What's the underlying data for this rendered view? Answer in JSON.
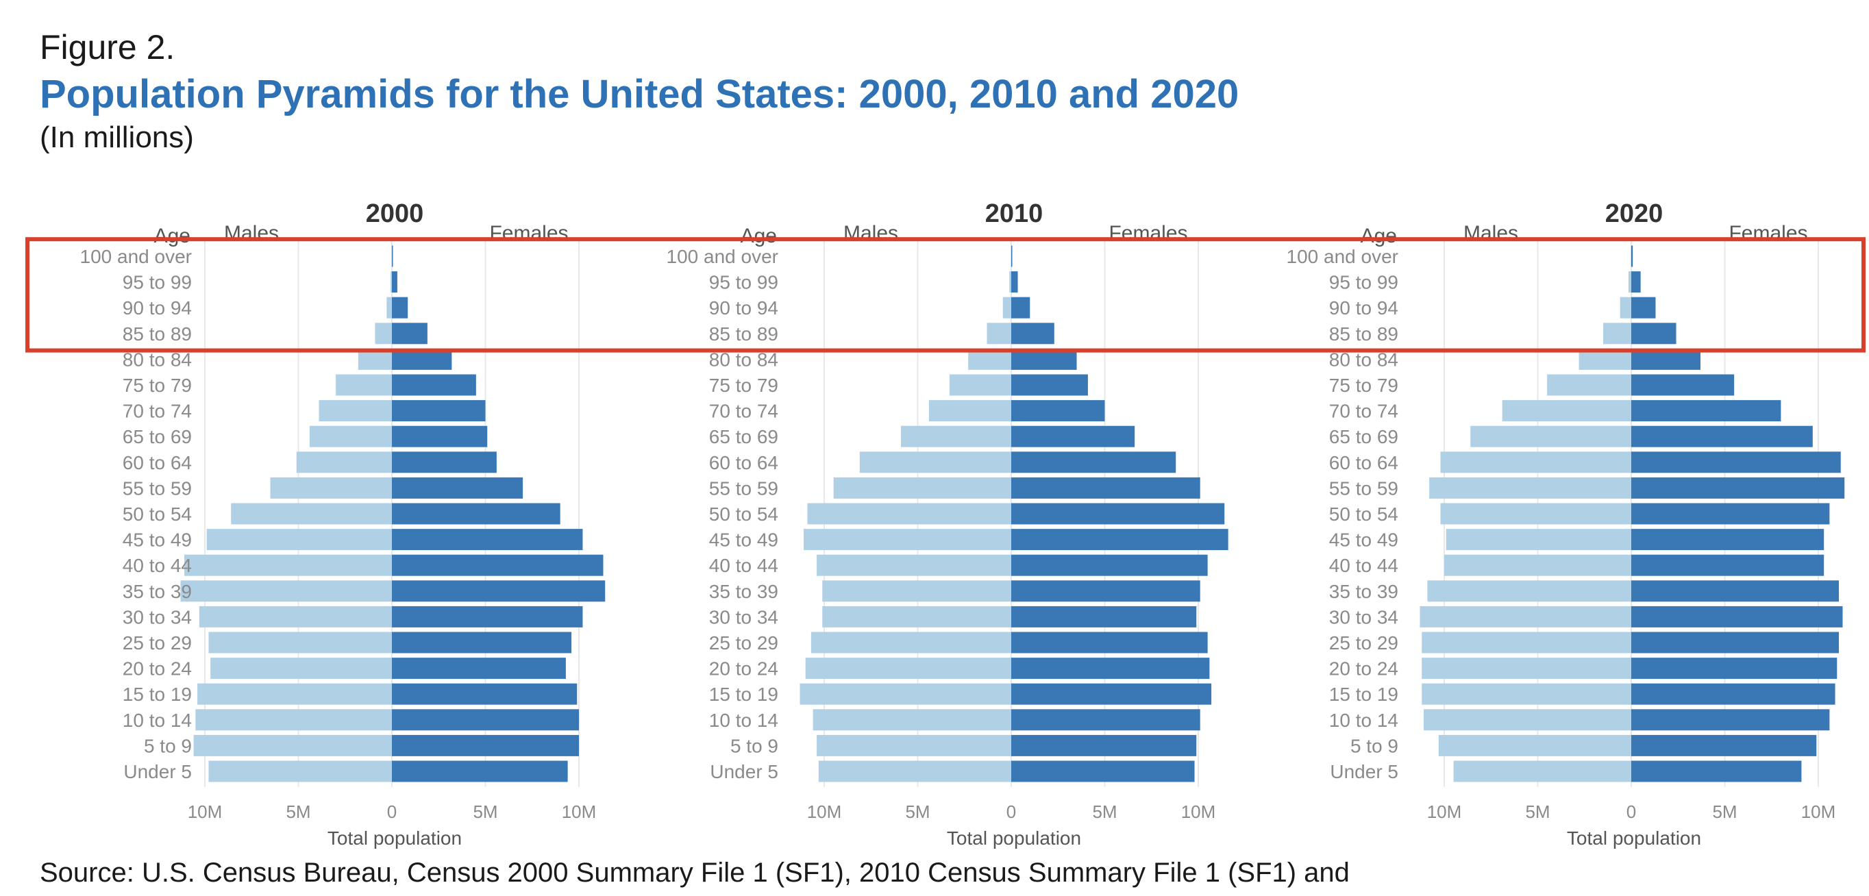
{
  "figure_label": "Figure 2.",
  "title": "Population Pyramids for the United States: 2000, 2010 and 2020",
  "subtitle": "(In millions)",
  "source": "Source: U.S. Census Bureau, Census 2000 Summary File 1 (SF1), 2010 Census Summary File 1 (SF1) and",
  "colors": {
    "males": "#b0d0e6",
    "females": "#3a78b5",
    "highlight": "#d9402b",
    "grid": "#e8e8e8"
  },
  "highlight_groups": [
    "100 and over",
    "95 to 99",
    "90 to 94",
    "85 to 89"
  ],
  "chart_data": [
    {
      "type": "bar",
      "orientation": "horizontal-pyramid",
      "title": "2000",
      "y_header": "Age",
      "left_header": "Males",
      "right_header": "Females",
      "xlabel": "Total population",
      "xlim": [
        -10,
        10
      ],
      "tick_labels": [
        "10M",
        "5M",
        "0",
        "5M",
        "10M"
      ],
      "categories": [
        "100 and over",
        "95 to 99",
        "90 to 94",
        "85 to 89",
        "80 to 84",
        "75 to 79",
        "70 to 74",
        "65 to 69",
        "60 to 64",
        "55 to 59",
        "50 to 54",
        "45 to 49",
        "40 to 44",
        "35 to 39",
        "30 to 34",
        "25 to 29",
        "20 to 24",
        "15 to 19",
        "10 to 14",
        "5 to 9",
        "Under 5"
      ],
      "series": [
        {
          "name": "Males",
          "values": [
            0.01,
            0.07,
            0.28,
            0.9,
            1.8,
            3.0,
            3.9,
            4.4,
            5.1,
            6.5,
            8.6,
            9.9,
            11.1,
            11.3,
            10.3,
            9.8,
            9.7,
            10.4,
            10.5,
            10.6,
            9.8
          ]
        },
        {
          "name": "Females",
          "values": [
            0.04,
            0.29,
            0.85,
            1.9,
            3.2,
            4.5,
            5.0,
            5.1,
            5.6,
            7.0,
            9.0,
            10.2,
            11.3,
            11.4,
            10.2,
            9.6,
            9.3,
            9.9,
            10.0,
            10.0,
            9.4
          ]
        }
      ]
    },
    {
      "type": "bar",
      "orientation": "horizontal-pyramid",
      "title": "2010",
      "y_header": "Age",
      "left_header": "Males",
      "right_header": "Females",
      "xlabel": "Total population",
      "xlim": [
        -10,
        10
      ],
      "tick_labels": [
        "10M",
        "5M",
        "0",
        "5M",
        "10M"
      ],
      "categories": [
        "100 and over",
        "95 to 99",
        "90 to 94",
        "85 to 89",
        "80 to 84",
        "75 to 79",
        "70 to 74",
        "65 to 69",
        "60 to 64",
        "55 to 59",
        "50 to 54",
        "45 to 49",
        "40 to 44",
        "35 to 39",
        "30 to 34",
        "25 to 29",
        "20 to 24",
        "15 to 19",
        "10 to 14",
        "5 to 9",
        "Under 5"
      ],
      "series": [
        {
          "name": "Males",
          "values": [
            0.01,
            0.1,
            0.45,
            1.3,
            2.3,
            3.3,
            4.4,
            5.9,
            8.1,
            9.5,
            10.9,
            11.1,
            10.4,
            10.1,
            10.1,
            10.7,
            11.0,
            11.3,
            10.6,
            10.4,
            10.3
          ]
        },
        {
          "name": "Females",
          "values": [
            0.05,
            0.35,
            1.0,
            2.3,
            3.5,
            4.1,
            5.0,
            6.6,
            8.8,
            10.1,
            11.4,
            11.6,
            10.5,
            10.1,
            9.9,
            10.5,
            10.6,
            10.7,
            10.1,
            9.9,
            9.8
          ]
        }
      ]
    },
    {
      "type": "bar",
      "orientation": "horizontal-pyramid",
      "title": "2020",
      "y_header": "Age",
      "left_header": "Males",
      "right_header": "Females",
      "xlabel": "Total population",
      "xlim": [
        -10,
        10
      ],
      "tick_labels": [
        "10M",
        "5M",
        "0",
        "5M",
        "10M"
      ],
      "categories": [
        "100 and over",
        "95 to 99",
        "90 to 94",
        "85 to 89",
        "80 to 84",
        "75 to 79",
        "70 to 74",
        "65 to 69",
        "60 to 64",
        "55 to 59",
        "50 to 54",
        "45 to 49",
        "40 to 44",
        "35 to 39",
        "30 to 34",
        "25 to 29",
        "20 to 24",
        "15 to 19",
        "10 to 14",
        "5 to 9",
        "Under 5"
      ],
      "series": [
        {
          "name": "Males",
          "values": [
            0.02,
            0.15,
            0.6,
            1.5,
            2.8,
            4.5,
            6.9,
            8.6,
            10.2,
            10.8,
            10.2,
            9.9,
            10.0,
            10.9,
            11.3,
            11.2,
            11.2,
            11.2,
            11.1,
            10.3,
            9.5
          ]
        },
        {
          "name": "Females",
          "values": [
            0.08,
            0.5,
            1.3,
            2.4,
            3.7,
            5.5,
            8.0,
            9.7,
            11.2,
            11.4,
            10.6,
            10.3,
            10.3,
            11.1,
            11.3,
            11.1,
            11.0,
            10.9,
            10.6,
            9.9,
            9.1
          ]
        }
      ]
    }
  ]
}
